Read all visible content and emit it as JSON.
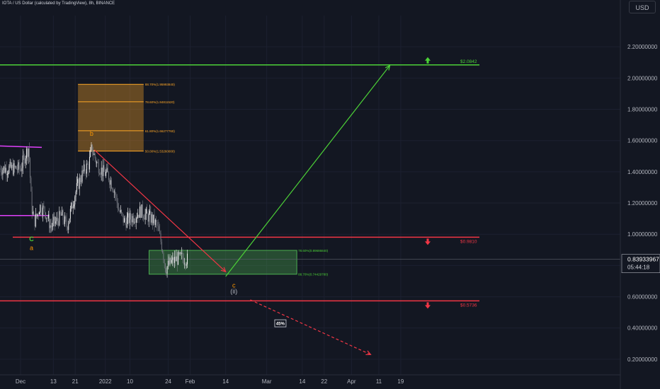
{
  "title": "IOTA / US Dollar (calculated by TradingView), 8h, BINANCE",
  "unit_label": "USD",
  "colors": {
    "background": "#131722",
    "bull": "#ffffff",
    "bear": "#777a83",
    "resistance": "#f23645",
    "target": "#4cd137",
    "fib_box": "#ffa726",
    "zone": "#4caf50",
    "range": "#e040fb",
    "wave_a": "#ff9800",
    "wave_c": "#4cd137"
  },
  "chart_data": {
    "type": "line",
    "title": "IOTA / US Dollar (calculated by TradingView), 8h, BINANCE",
    "xlabel": "",
    "ylabel": "",
    "ylim": [
      0.1,
      2.4
    ],
    "y_ticks": [
      "2.20000000",
      "2.00000000",
      "1.80000000",
      "1.60000000",
      "1.40000000",
      "1.20000000",
      "1.00000000",
      "0.80000000",
      "0.60000000",
      "0.40000000",
      "0.20000000"
    ],
    "x_tick_labels": [
      "Dec",
      "13",
      "21",
      "2022",
      "10",
      "24",
      "Feb",
      "14",
      "Mar",
      "14",
      "22",
      "Apr",
      "11",
      "19"
    ],
    "price_path": {
      "x": [
        "Dec 1",
        "Dec 3",
        "Dec 4",
        "Dec 5",
        "Dec 6",
        "Dec 7",
        "Dec 8",
        "Dec 10",
        "Dec 12",
        "Dec 14",
        "Dec 16",
        "Dec 18",
        "Dec 20",
        "Dec 22",
        "Dec 24",
        "Dec 26",
        "Dec 27",
        "Dec 29",
        "Dec 31",
        "Jan 2",
        "Jan 4",
        "Jan 6",
        "Jan 8",
        "Jan 10",
        "Jan 12",
        "Jan 14",
        "Jan 16",
        "Jan 18",
        "Jan 20",
        "Jan 22",
        "Jan 23",
        "Jan 25",
        "Jan 27",
        "Jan 29",
        "Jan 31"
      ],
      "y": [
        1.42,
        1.52,
        1.56,
        1.18,
        1.08,
        1.12,
        1.18,
        1.15,
        1.05,
        1.08,
        1.12,
        1.05,
        1.2,
        1.32,
        1.4,
        1.45,
        1.55,
        1.45,
        1.4,
        1.38,
        1.3,
        1.15,
        1.08,
        1.1,
        1.12,
        1.15,
        1.12,
        1.1,
        1.05,
        0.9,
        0.78,
        0.82,
        0.84,
        0.85,
        0.84
      ]
    },
    "horizontal_levels": [
      {
        "label": "$2.0842",
        "value": 2.0842
      },
      {
        "label": "$0.9810",
        "value": 0.981
      },
      {
        "label": "$0.5736",
        "value": 0.5736
      }
    ],
    "fib_levels": [
      {
        "label": "88.70%(1.95993840)",
        "value": 1.9599384
      },
      {
        "label": "78.60%(1.84811520)",
        "value": 1.8481152
      },
      {
        "label": "61.80%(1.66277760)",
        "value": 1.6627776
      },
      {
        "label": "50.00%(1.53260000)",
        "value": 1.5326
      }
    ],
    "zone_levels": [
      {
        "label": "78.60%(0.89686840)",
        "value": 0.8968684
      },
      {
        "label": "88.70%(0.74429780)",
        "value": 0.7442978
      }
    ],
    "range_lines": [
      {
        "value": 1.565
      },
      {
        "value": 1.12
      }
    ],
    "wave_labels": [
      {
        "text": "C",
        "x": "Dec 5",
        "y": 0.955,
        "kind": "wave_c"
      },
      {
        "text": "a",
        "x": "Dec 5",
        "y": 0.9,
        "kind": "wave_a"
      },
      {
        "text": "b",
        "x": "Dec 27",
        "y": 1.63,
        "kind": "wave_a"
      },
      {
        "text": "c",
        "x": "Feb 17",
        "y": 0.66,
        "kind": "wave_a"
      },
      {
        "text": "(ii)",
        "x": "Feb 17",
        "y": 0.62,
        "kind": "neutral"
      }
    ],
    "projections": [
      {
        "kind": "down",
        "x": [
          "Dec 28",
          "Feb 14"
        ],
        "y": [
          1.54,
          0.76
        ]
      },
      {
        "kind": "up",
        "x": [
          "Feb 14",
          "Apr 15"
        ],
        "y": [
          0.73,
          2.08
        ]
      },
      {
        "kind": "dashed",
        "x": [
          "Feb 23",
          "Apr 8"
        ],
        "y": [
          0.58,
          0.23
        ]
      }
    ],
    "probability_box": {
      "text": "45%",
      "x": "Mar 6",
      "y": 0.43
    },
    "current_price": "0.83933967",
    "countdown": "05:44:18",
    "current_value": 0.83933967
  }
}
